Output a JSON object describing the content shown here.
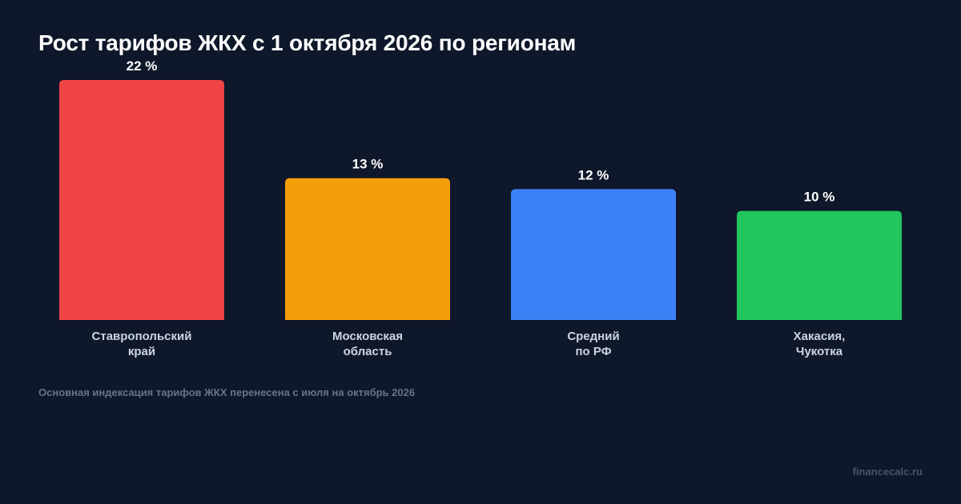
{
  "title": "Рост тарифов ЖКХ с 1 октября 2026 по регионам",
  "footnote": "Основная индексация тарифов ЖКХ перенесена с июля на октябрь 2026",
  "watermark": "financecalc.ru",
  "chart_data": {
    "type": "bar",
    "title": "Рост тарифов ЖКХ с 1 октября 2026 по регионам",
    "xlabel": "",
    "ylabel": "",
    "unit": "%",
    "grid": false,
    "legend": "none",
    "categories": [
      [
        "Ставропольский",
        "край"
      ],
      [
        "Московская",
        "область"
      ],
      [
        "Средний",
        "по РФ"
      ],
      [
        "Хакасия,",
        "Чукотка"
      ]
    ],
    "value_labels": [
      "22 %",
      "13 %",
      "12 %",
      "10 %"
    ],
    "values": [
      22,
      13,
      12,
      10
    ],
    "colors": [
      "#ef4444",
      "#f59e0b",
      "#3b82f6",
      "#22c55e"
    ],
    "ylim": [
      0,
      22
    ]
  }
}
